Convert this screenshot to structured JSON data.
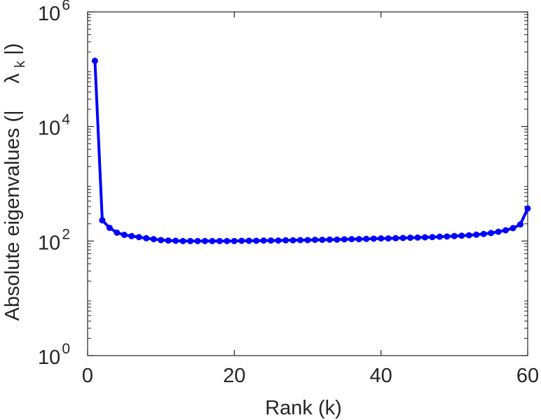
{
  "chart_data": {
    "type": "line",
    "title": "",
    "xlabel": "Rank (k)",
    "ylabel": {
      "prefix": "Absolute eigenvalues (|",
      "symbol": "λ",
      "subscript": "k",
      "suffix": "|)"
    },
    "xlim": [
      0,
      60
    ],
    "ylim": [
      1,
      1000000
    ],
    "yscale": "log",
    "xticks": [
      {
        "value": 0,
        "label": "0"
      },
      {
        "value": 20,
        "label": "20"
      },
      {
        "value": 40,
        "label": "40"
      },
      {
        "value": 60,
        "label": "60"
      }
    ],
    "yticks": [
      {
        "value": 1,
        "base": "10",
        "exp": "0"
      },
      {
        "value": 100,
        "base": "10",
        "exp": "2"
      },
      {
        "value": 10000,
        "base": "10",
        "exp": "4"
      },
      {
        "value": 1000000,
        "base": "10",
        "exp": "6"
      }
    ],
    "grid": false,
    "series": [
      {
        "color": "#0000ff",
        "marker": "circle",
        "x": [
          1,
          2,
          3,
          4,
          5,
          6,
          7,
          8,
          9,
          10,
          11,
          12,
          13,
          14,
          15,
          16,
          17,
          18,
          19,
          20,
          21,
          22,
          23,
          24,
          25,
          26,
          27,
          28,
          29,
          30,
          31,
          32,
          33,
          34,
          35,
          36,
          37,
          38,
          39,
          40,
          41,
          42,
          43,
          44,
          45,
          46,
          47,
          48,
          49,
          50,
          51,
          52,
          53,
          54,
          55,
          56,
          57,
          58,
          59,
          60
        ],
        "y": [
          140000,
          230,
          170,
          140,
          128,
          122,
          117,
          112,
          108,
          104,
          102,
          101,
          100,
          100,
          100,
          100,
          100,
          100,
          100,
          100,
          101,
          101,
          101,
          102,
          102,
          102,
          103,
          103,
          104,
          104,
          105,
          105,
          106,
          106,
          107,
          108,
          108,
          109,
          110,
          111,
          111,
          112,
          113,
          114,
          115,
          116,
          117,
          119,
          120,
          122,
          124,
          126,
          129,
          133,
          138,
          145,
          154,
          168,
          195,
          370
        ]
      }
    ]
  }
}
